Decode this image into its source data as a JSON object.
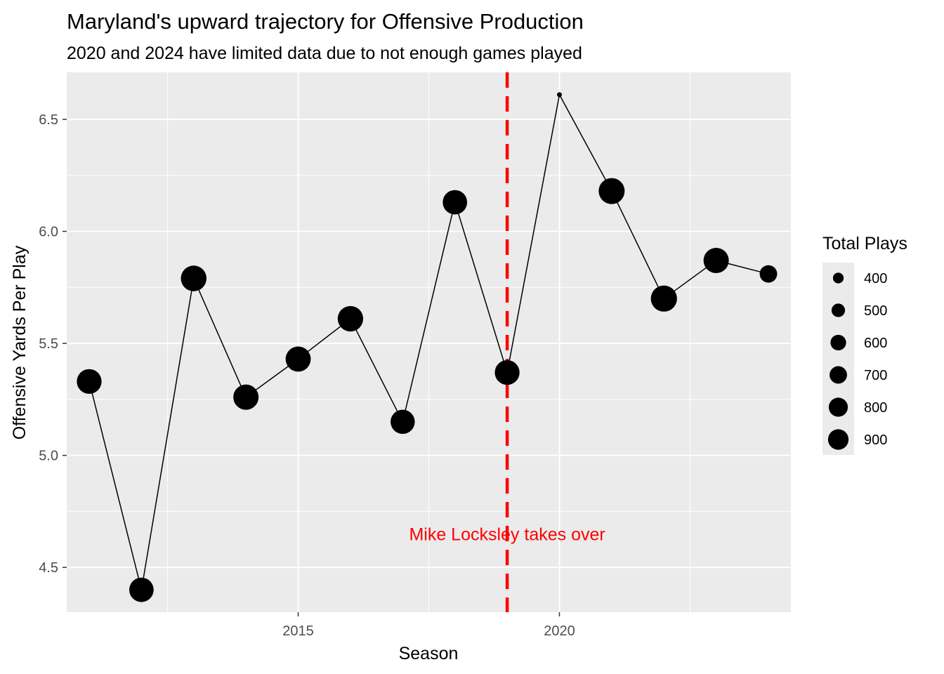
{
  "chart_data": {
    "type": "scatter",
    "title": "Maryland's upward trajectory for Offensive Production",
    "subtitle": "2020 and 2024 have limited data due to not enough games played",
    "xlabel": "Season",
    "ylabel": "Offensive Yards Per Play",
    "xlim": [
      2010.57,
      2024.43
    ],
    "ylim": [
      4.3,
      6.71
    ],
    "x_ticks": [
      2015,
      2020
    ],
    "x_tick_labels": [
      "2015",
      "2020"
    ],
    "x_minor_ticks": [
      2012.5,
      2017.5,
      2022.5
    ],
    "y_ticks": [
      4.5,
      5.0,
      5.5,
      6.0,
      6.5
    ],
    "y_tick_labels": [
      "4.5",
      "5.0",
      "5.5",
      "6.0",
      "6.5"
    ],
    "y_minor_ticks": [
      4.75,
      5.25,
      5.75,
      6.25
    ],
    "grid": true,
    "connect_points": true,
    "points": [
      {
        "x": 2011,
        "y": 5.33,
        "size": 850
      },
      {
        "x": 2012,
        "y": 4.4,
        "size": 830
      },
      {
        "x": 2013,
        "y": 5.79,
        "size": 900
      },
      {
        "x": 2014,
        "y": 5.26,
        "size": 880
      },
      {
        "x": 2015,
        "y": 5.43,
        "size": 870
      },
      {
        "x": 2016,
        "y": 5.61,
        "size": 890
      },
      {
        "x": 2017,
        "y": 5.15,
        "size": 820
      },
      {
        "x": 2018,
        "y": 6.13,
        "size": 830
      },
      {
        "x": 2019,
        "y": 5.37,
        "size": 850
      },
      {
        "x": 2020,
        "y": 6.61,
        "size": 300
      },
      {
        "x": 2021,
        "y": 6.18,
        "size": 920
      },
      {
        "x": 2022,
        "y": 5.7,
        "size": 930
      },
      {
        "x": 2023,
        "y": 5.87,
        "size": 880
      },
      {
        "x": 2024,
        "y": 5.81,
        "size": 520
      }
    ],
    "vline": {
      "x": 2019,
      "color": "#ff0000",
      "style": "dashed"
    },
    "annotation": {
      "text": "Mike Locksley takes over",
      "x": 2019,
      "y": 4.65,
      "color": "#ff0000"
    },
    "legend": {
      "title": "Total Plays",
      "placement": "right",
      "entries": [
        {
          "label": "400",
          "size": 400
        },
        {
          "label": "500",
          "size": 500
        },
        {
          "label": "600",
          "size": 600
        },
        {
          "label": "700",
          "size": 700
        },
        {
          "label": "800",
          "size": 800
        },
        {
          "label": "900",
          "size": 900
        }
      ]
    },
    "colors": {
      "panel": "#ebebeb",
      "grid": "#ffffff",
      "point": "#000000",
      "line": "#000000",
      "tick_text": "#4d4d4d"
    }
  }
}
